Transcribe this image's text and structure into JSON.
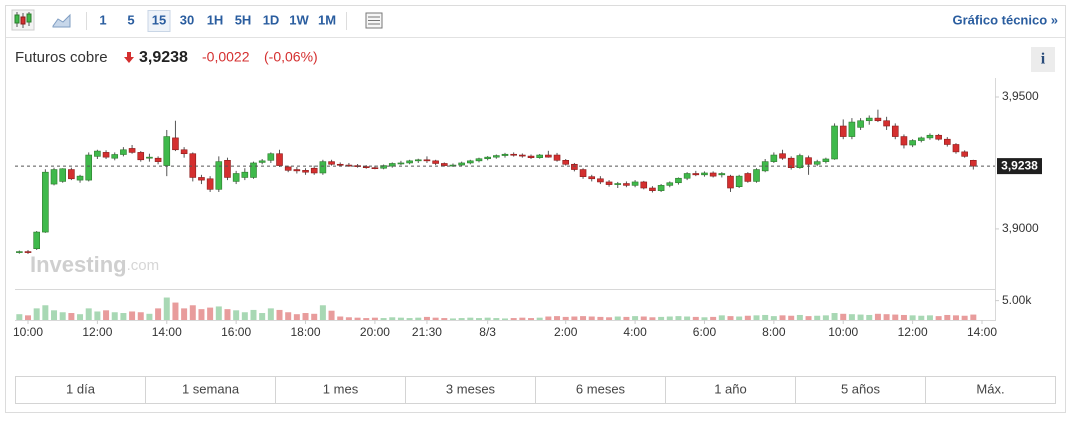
{
  "toolbar": {
    "intervals": [
      "1",
      "5",
      "15",
      "30",
      "1H",
      "5H",
      "1D",
      "1W",
      "1M"
    ],
    "selected_interval": "15",
    "link": "Gráfico técnico »"
  },
  "header": {
    "name": "Futuros cobre",
    "price": "3,9238",
    "change": "-0,0022",
    "change_pct": "(-0,06%)",
    "info": "i"
  },
  "ranges": [
    "1 día",
    "1 semana",
    "1 mes",
    "3 meses",
    "6 meses",
    "1 año",
    "5 años",
    "Máx."
  ],
  "watermark": [
    "Investing",
    ".com"
  ],
  "chart_data": {
    "type": "candlestick",
    "colors": {
      "up": "#3fb94b",
      "down": "#d42f2f",
      "volume_up": "#a8d8b4",
      "volume_down": "#e89c9c"
    },
    "xlim": [
      -0.5,
      112.5
    ],
    "xticks": [
      {
        "value": 1,
        "label": "10:00"
      },
      {
        "value": 9,
        "label": "12:00"
      },
      {
        "value": 17,
        "label": "14:00"
      },
      {
        "value": 25,
        "label": "16:00"
      },
      {
        "value": 33,
        "label": "18:00"
      },
      {
        "value": 41,
        "label": "20:00"
      },
      {
        "value": 47,
        "label": "21:30"
      },
      {
        "value": 54,
        "label": "8/3"
      },
      {
        "value": 63,
        "label": "2:00"
      },
      {
        "value": 71,
        "label": "4:00"
      },
      {
        "value": 79,
        "label": "6:00"
      },
      {
        "value": 87,
        "label": "8:00"
      },
      {
        "value": 95,
        "label": "10:00"
      },
      {
        "value": 103,
        "label": "12:00"
      },
      {
        "value": 111,
        "label": "14:00"
      }
    ],
    "ylim": [
      3.8776,
      3.9572
    ],
    "yticks": [
      {
        "value": 3.95,
        "label": "3,9500"
      },
      {
        "value": 3.9,
        "label": "3,9000"
      }
    ],
    "last_price": {
      "value": 3.9238,
      "label": "3,9238"
    },
    "volume_lim": [
      0,
      8000
    ],
    "volume_ticks": [
      {
        "value": 5000,
        "label": "5.00k"
      }
    ],
    "open": [
      3.8912,
      3.8914,
      3.8925,
      3.8988,
      3.917,
      3.918,
      3.9225,
      3.9185,
      3.9185,
      3.9275,
      3.929,
      3.9268,
      3.9282,
      3.9305,
      3.929,
      3.9268,
      3.9268,
      3.924,
      3.9345,
      3.93,
      3.9285,
      3.9195,
      3.919,
      3.915,
      3.926,
      3.918,
      3.9195,
      3.9195,
      3.9252,
      3.926,
      3.9285,
      3.9235,
      3.9225,
      3.9222,
      3.923,
      3.9212,
      3.9255,
      3.9245,
      3.9242,
      3.924,
      3.9236,
      3.9232,
      3.923,
      3.9238,
      3.9248,
      3.925,
      3.9258,
      3.9262,
      3.9258,
      3.9248,
      3.924,
      3.9242,
      3.925,
      3.9258,
      3.9266,
      3.9272,
      3.9278,
      3.9283,
      3.928,
      3.9276,
      3.927,
      3.928,
      3.928,
      3.926,
      3.9245,
      3.9225,
      3.9198,
      3.919,
      3.9178,
      3.9168,
      3.9172,
      3.9165,
      3.9178,
      3.9155,
      3.9145,
      3.9165,
      3.9175,
      3.9192,
      3.921,
      3.9205,
      3.9212,
      3.9205,
      3.92,
      3.916,
      3.921,
      3.918,
      3.922,
      3.9255,
      3.9285,
      3.9268,
      3.9232,
      3.927,
      3.9245,
      3.9255,
      3.9265,
      3.939,
      3.935,
      3.9385,
      3.941,
      3.942,
      3.941,
      3.939,
      3.935,
      3.9318,
      3.9335,
      3.9345,
      3.9355,
      3.934,
      3.932,
      3.9292,
      3.926
    ],
    "high": [
      3.8918,
      3.892,
      3.8992,
      3.9226,
      3.9232,
      3.923,
      3.9232,
      3.9205,
      3.929,
      3.93,
      3.9298,
      3.929,
      3.931,
      3.9318,
      3.9295,
      3.9285,
      3.9275,
      3.9375,
      3.941,
      3.931,
      3.929,
      3.9205,
      3.92,
      3.9275,
      3.927,
      3.922,
      3.923,
      3.9255,
      3.9265,
      3.929,
      3.93,
      3.924,
      3.9235,
      3.923,
      3.924,
      3.9262,
      3.9262,
      3.9252,
      3.925,
      3.9246,
      3.9242,
      3.924,
      3.9244,
      3.9252,
      3.9258,
      3.9262,
      3.9266,
      3.9275,
      3.9262,
      3.9252,
      3.9248,
      3.9255,
      3.9262,
      3.927,
      3.9276,
      3.9282,
      3.9288,
      3.929,
      3.9286,
      3.9282,
      3.9284,
      3.9296,
      3.9288,
      3.9265,
      3.925,
      3.923,
      3.9205,
      3.92,
      3.9185,
      3.9178,
      3.918,
      3.9185,
      3.9182,
      3.9162,
      3.917,
      3.918,
      3.9195,
      3.9215,
      3.922,
      3.9218,
      3.9218,
      3.9215,
      3.9205,
      3.9205,
      3.9215,
      3.923,
      3.9265,
      3.929,
      3.93,
      3.9275,
      3.9285,
      3.9278,
      3.9262,
      3.927,
      3.94,
      3.9415,
      3.942,
      3.942,
      3.943,
      3.9452,
      3.9425,
      3.94,
      3.9358,
      3.934,
      3.935,
      3.9362,
      3.936,
      3.9348,
      3.9325,
      3.9298,
      3.9262
    ],
    "low": [
      3.8906,
      3.8905,
      3.892,
      3.8985,
      3.9165,
      3.9175,
      3.9185,
      3.9175,
      3.918,
      3.9265,
      3.9265,
      3.926,
      3.9275,
      3.9285,
      3.9255,
      3.9255,
      3.9245,
      3.92,
      3.9295,
      3.927,
      3.918,
      3.917,
      3.914,
      3.914,
      3.9185,
      3.917,
      3.9185,
      3.919,
      3.9245,
      3.925,
      3.9235,
      3.9215,
      3.921,
      3.9205,
      3.9205,
      3.9205,
      3.924,
      3.9238,
      3.9235,
      3.9232,
      3.9228,
      3.9226,
      3.9226,
      3.9232,
      3.9242,
      3.9245,
      3.925,
      3.925,
      3.9242,
      3.9236,
      3.9235,
      3.9238,
      3.9245,
      3.9252,
      3.926,
      3.9266,
      3.927,
      3.9274,
      3.927,
      3.9265,
      3.9266,
      3.927,
      3.9255,
      3.924,
      3.9218,
      3.919,
      3.918,
      3.917,
      3.916,
      3.9155,
      3.9158,
      3.9158,
      3.915,
      3.9138,
      3.914,
      3.9158,
      3.9168,
      3.9185,
      3.92,
      3.9198,
      3.9195,
      3.9195,
      3.914,
      3.9155,
      3.9175,
      3.9175,
      3.9215,
      3.925,
      3.9262,
      3.9225,
      3.9228,
      3.9205,
      3.9238,
      3.9248,
      3.9262,
      3.934,
      3.934,
      3.9375,
      3.9395,
      3.9405,
      3.9375,
      3.934,
      3.9305,
      3.931,
      3.9328,
      3.9338,
      3.9335,
      3.9312,
      3.9285,
      3.927,
      3.9225
    ],
    "close": [
      3.8914,
      3.8912,
      3.8988,
      3.9215,
      3.9225,
      3.9228,
      3.919,
      3.92,
      3.928,
      3.9295,
      3.9272,
      3.9282,
      3.93,
      3.929,
      3.9262,
      3.9272,
      3.9255,
      3.935,
      3.93,
      3.9285,
      3.9195,
      3.9185,
      3.915,
      3.9255,
      3.9195,
      3.921,
      3.9215,
      3.925,
      3.9258,
      3.9285,
      3.924,
      3.9222,
      3.922,
      3.9215,
      3.9212,
      3.9255,
      3.9245,
      3.9242,
      3.924,
      3.9236,
      3.9232,
      3.923,
      3.924,
      3.9248,
      3.925,
      3.9258,
      3.9262,
      3.9258,
      3.9248,
      3.924,
      3.9242,
      3.925,
      3.9258,
      3.9266,
      3.9272,
      3.9278,
      3.9283,
      3.928,
      3.9276,
      3.927,
      3.928,
      3.9272,
      3.926,
      3.9245,
      3.9225,
      3.9198,
      3.919,
      3.9178,
      3.9168,
      3.9172,
      3.9165,
      3.9178,
      3.9155,
      3.9145,
      3.9165,
      3.9175,
      3.9192,
      3.921,
      3.9205,
      3.9212,
      3.92,
      3.921,
      3.9155,
      3.92,
      3.918,
      3.9225,
      3.9255,
      3.928,
      3.9268,
      3.9232,
      3.9278,
      3.9245,
      3.9255,
      3.9265,
      3.939,
      3.935,
      3.9405,
      3.941,
      3.942,
      3.941,
      3.939,
      3.935,
      3.9318,
      3.9335,
      3.9345,
      3.9355,
      3.934,
      3.932,
      3.9292,
      3.9275,
      3.9238
    ],
    "volume": [
      1500,
      1200,
      3000,
      3800,
      2500,
      2000,
      1800,
      1500,
      3000,
      2200,
      2500,
      2000,
      1800,
      2200,
      2000,
      1600,
      3000,
      5800,
      4500,
      3000,
      3800,
      2800,
      3200,
      3500,
      2800,
      2500,
      2000,
      2600,
      1800,
      3000,
      2600,
      2000,
      1500,
      1800,
      1600,
      3800,
      2400,
      900,
      700,
      600,
      500,
      600,
      500,
      700,
      600,
      500,
      600,
      800,
      600,
      500,
      400,
      500,
      600,
      500,
      600,
      500,
      400,
      500,
      600,
      500,
      600,
      900,
      1000,
      800,
      900,
      1000,
      900,
      800,
      700,
      900,
      800,
      1000,
      900,
      700,
      800,
      900,
      1000,
      900,
      800,
      700,
      800,
      1200,
      1000,
      900,
      1100,
      1200,
      1300,
      1000,
      1200,
      1100,
      1300,
      1000,
      1100,
      1200,
      1800,
      1600,
      1500,
      1400,
      1300,
      1600,
      1500,
      1400,
      1300,
      1200,
      1100,
      1200,
      1000,
      1300,
      1200,
      1100,
      1400
    ]
  }
}
